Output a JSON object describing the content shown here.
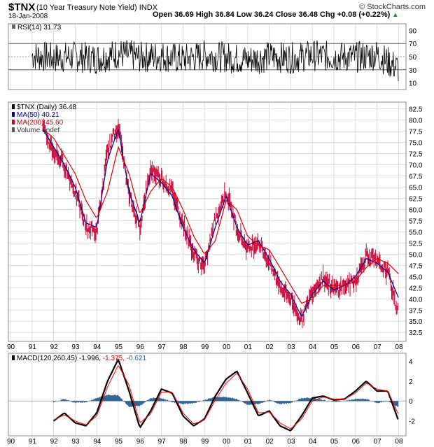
{
  "header": {
    "ticker": "$TNX",
    "description": "(10 Year Treasury Note Yield)",
    "exchange": "INDX",
    "date": "18-Jan-2008",
    "ohlc": "Open 36.69   High 36.84   Low 36.24   Close 36.48   Chg +0.08 (+0.22%)",
    "arrow": "▲",
    "copyright": "© StockCharts.com"
  },
  "rsi": {
    "label": "RSI(14) 31.73",
    "ticks": [
      "90",
      "70",
      "50",
      "30",
      "10"
    ],
    "overbought": 70,
    "oversold": 30
  },
  "price": {
    "legend": [
      {
        "text": "$TNX (Daily) 36.48",
        "color": "#000000"
      },
      {
        "text": "MA(50) 40.21",
        "color": "#00008b"
      },
      {
        "text": "MA(200) 45.60",
        "color": "#cc0000"
      },
      {
        "text": "Volume undef",
        "color": "#333333"
      }
    ],
    "ticks": [
      "82.5",
      "80.0",
      "77.5",
      "75.0",
      "72.5",
      "70.0",
      "67.5",
      "65.0",
      "62.5",
      "60.0",
      "57.5",
      "55.0",
      "52.5",
      "50.0",
      "47.5",
      "45.0",
      "42.5",
      "40.0",
      "37.5",
      "35.0",
      "32.5"
    ]
  },
  "macd": {
    "label_prefix": "MACD(120,260,45)",
    "value1": "-1.996",
    "value2": "-1.375",
    "value3": "-0.621",
    "ticks": [
      "4",
      "2",
      "0",
      "-2"
    ]
  },
  "x_axis": {
    "years": [
      "90",
      "91",
      "92",
      "93",
      "94",
      "95",
      "96",
      "97",
      "98",
      "99",
      "00",
      "01",
      "02",
      "03",
      "04",
      "05",
      "06",
      "07",
      "08"
    ]
  },
  "colors": {
    "price_bar": "#cc0033",
    "ma50": "#00008b",
    "ma200": "#dd0000",
    "macd_line": "#000000",
    "signal_line": "#ff0000",
    "histogram": "#336699",
    "grid": "#dddddd",
    "value3": "#336699"
  },
  "chart_data": [
    {
      "type": "line",
      "title": "RSI(14) 31.73",
      "ylim": [
        0,
        100
      ],
      "reference_lines": [
        30,
        50,
        70
      ],
      "x": [
        "91",
        "92",
        "93",
        "94",
        "95",
        "96",
        "97",
        "98",
        "99",
        "00",
        "01",
        "02",
        "03",
        "04",
        "05",
        "06",
        "07",
        "08"
      ],
      "series": [
        {
          "name": "RSI(14)",
          "values": [
            52,
            48,
            50,
            47,
            55,
            49,
            51,
            46,
            52,
            49,
            45,
            50,
            48,
            52,
            50,
            49,
            53,
            31.73
          ]
        }
      ]
    },
    {
      "type": "line",
      "title": "$TNX (Daily) 36.48",
      "ylim": [
        30.5,
        84
      ],
      "x": [
        "91.5",
        "92",
        "92.5",
        "93",
        "93.5",
        "94",
        "94.5",
        "95",
        "95.5",
        "96",
        "96.5",
        "97",
        "97.5",
        "98",
        "98.5",
        "99",
        "99.5",
        "00",
        "00.5",
        "01",
        "01.5",
        "02",
        "02.5",
        "03",
        "03.5",
        "04",
        "04.5",
        "05",
        "05.5",
        "06",
        "06.5",
        "07",
        "07.5",
        "08"
      ],
      "series": [
        {
          "name": "$TNX (Daily)",
          "values": [
            78,
            73,
            70,
            64,
            56,
            55,
            73,
            79,
            63,
            56,
            69,
            67,
            64,
            57,
            50,
            47,
            58,
            64,
            56,
            51,
            53,
            48,
            43,
            40,
            35,
            42,
            45,
            42,
            43,
            44,
            50,
            48,
            46,
            36.48
          ]
        },
        {
          "name": "MA(50)",
          "values": [
            78,
            74,
            70,
            65,
            57,
            56,
            71,
            78,
            64,
            57,
            68,
            66,
            63,
            56,
            51,
            48,
            56,
            63,
            56,
            52,
            53,
            49,
            44,
            41,
            36,
            41,
            44,
            42,
            43,
            45,
            49,
            48,
            46,
            40.21
          ]
        },
        {
          "name": "MA(200)",
          "values": [
            78,
            76,
            72,
            68,
            62,
            58,
            64,
            74,
            68,
            59,
            64,
            67,
            65,
            60,
            54,
            50,
            53,
            62,
            60,
            54,
            52,
            51,
            47,
            43,
            39,
            40,
            43,
            43,
            43,
            44,
            47,
            49,
            48,
            45.6
          ]
        }
      ]
    },
    {
      "type": "line",
      "title": "MACD(120,260,45) -1.996, -1.375, -0.621",
      "ylim": [
        -3.5,
        4.8
      ],
      "x": [
        "92",
        "92.5",
        "93",
        "93.5",
        "94",
        "94.5",
        "95",
        "95.5",
        "96",
        "96.5",
        "97",
        "97.5",
        "98",
        "98.5",
        "99",
        "99.5",
        "00",
        "00.5",
        "01",
        "01.5",
        "02",
        "02.5",
        "03",
        "03.5",
        "04",
        "04.5",
        "05",
        "05.5",
        "06",
        "06.5",
        "07",
        "07.5",
        "08"
      ],
      "series": [
        {
          "name": "MACD",
          "values": [
            -2.0,
            -1.2,
            -2.2,
            -2.5,
            -1.2,
            2.0,
            4.2,
            1.0,
            -2.7,
            -1.0,
            1.2,
            0.8,
            -1.5,
            -2.5,
            -1.8,
            0.5,
            2.2,
            3.0,
            0.8,
            -1.5,
            -1.0,
            -2.5,
            -3.0,
            -1.5,
            0.3,
            0.5,
            0.1,
            0.2,
            1.0,
            2.0,
            1.0,
            1.0,
            -1.996
          ]
        },
        {
          "name": "Signal",
          "values": [
            -1.9,
            -1.4,
            -2.0,
            -2.4,
            -1.5,
            1.4,
            3.6,
            1.6,
            -2.2,
            -1.3,
            0.9,
            0.9,
            -1.2,
            -2.3,
            -1.9,
            0.1,
            1.8,
            2.8,
            1.2,
            -1.2,
            -1.1,
            -2.2,
            -2.8,
            -1.8,
            0.0,
            0.4,
            0.2,
            0.2,
            0.8,
            1.8,
            1.2,
            1.0,
            -1.375
          ]
        },
        {
          "name": "Histogram",
          "values": [
            -0.1,
            0.2,
            -0.2,
            -0.1,
            0.3,
            0.6,
            0.6,
            -0.6,
            -0.5,
            0.3,
            0.3,
            -0.1,
            -0.3,
            -0.2,
            0.1,
            0.4,
            0.4,
            0.2,
            -0.4,
            -0.3,
            0.1,
            -0.3,
            -0.2,
            0.3,
            0.3,
            0.1,
            -0.1,
            0.0,
            0.2,
            0.2,
            -0.2,
            0.0,
            -0.621
          ]
        }
      ]
    }
  ]
}
